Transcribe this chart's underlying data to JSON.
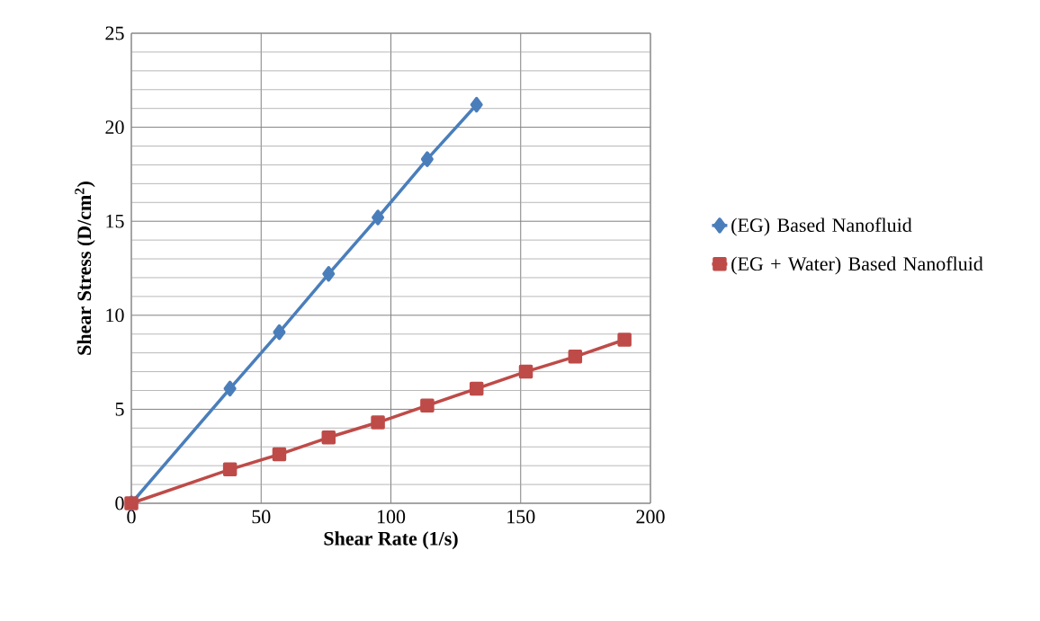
{
  "chart_data": {
    "type": "line",
    "xlabel": "Shear Rate (1/s)",
    "ylabel": "Shear Stress (D/cm$^{2}$)",
    "xlim": [
      0,
      200
    ],
    "ylim": [
      0,
      25
    ],
    "xticks": [
      0,
      50,
      100,
      150,
      200
    ],
    "yticks": [
      0,
      5,
      10,
      15,
      20,
      25
    ],
    "grid": true,
    "legend": "right",
    "series": [
      {
        "name": "(EG) Based Nanofluid",
        "color": "#4a7ebb",
        "marker": "diamond",
        "x": [
          0,
          38,
          57,
          76,
          95,
          114,
          133
        ],
        "values": [
          0,
          6.1,
          9.1,
          12.2,
          15.2,
          18.3,
          21.2
        ]
      },
      {
        "name": "(EG + Water) Based Nanofluid",
        "color": "#be4b48",
        "marker": "square",
        "x": [
          0,
          38,
          57,
          76,
          95,
          114,
          133,
          152,
          171,
          190
        ],
        "values": [
          0,
          1.8,
          2.6,
          3.5,
          4.3,
          5.2,
          6.1,
          7.0,
          7.8,
          8.7
        ]
      }
    ]
  }
}
